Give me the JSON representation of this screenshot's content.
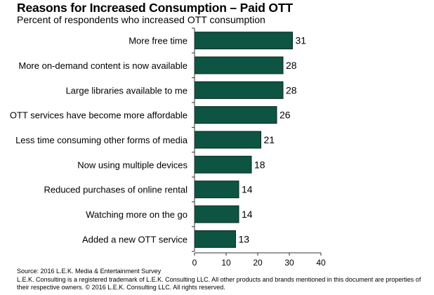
{
  "chart_data": {
    "type": "bar",
    "orientation": "horizontal",
    "title": "Reasons for Increased Consumption – Paid OTT",
    "subtitle": "Percent of respondents who increased OTT consumption",
    "xlabel": "",
    "ylabel": "",
    "xlim": [
      0,
      40
    ],
    "xticks": [
      0,
      10,
      20,
      30,
      40
    ],
    "grid": false,
    "legend": "none",
    "bar_color": "#0d5442",
    "categories": [
      "More free time",
      "More on-demand content is now available",
      "Large libraries available to me",
      "OTT services have become more affordable",
      "Less time consuming other forms of media",
      "Now using multiple devices",
      "Reduced purchases of online rental",
      "Watching more on the go",
      "Added a new OTT service"
    ],
    "values": [
      31,
      28,
      28,
      26,
      21,
      18,
      14,
      14,
      13
    ]
  },
  "footer": {
    "source": "Source: 2016 L.E.K. Media & Entertainment Survey",
    "legal": "L.E.K. Consulting is a registered trademark of L.E.K. Consulting LLC.  All other products and brands mentioned in this document are properties of their respective owners. © 2016 L.E.K. Consulting LLC.  All rights reserved."
  }
}
